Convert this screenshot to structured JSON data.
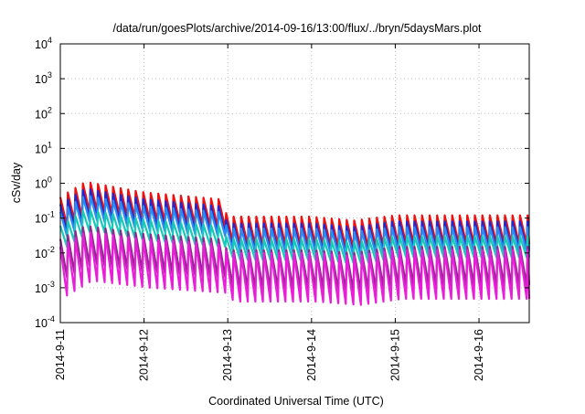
{
  "chart_data": {
    "type": "line",
    "title": "/data/run/goesPlots/archive/2014-09-16/13:00/flux/../bryn/5daysMars.plot",
    "xlabel": "Coordinated Universal Time (UTC)",
    "ylabel": "cSv/day",
    "x_range_days": [
      0,
      5.6
    ],
    "ylim": [
      0.0001,
      10000
    ],
    "yscale": "log",
    "grid": true,
    "legend": "none",
    "x_tick_labels": [
      "2014-9-11",
      "2014-9-12",
      "2014-9-13",
      "2014-9-14",
      "2014-9-15",
      "2014-9-16"
    ],
    "x_tick_values": [
      0,
      1,
      2,
      3,
      4,
      5
    ],
    "y_ticks": [
      {
        "value": 0.0001,
        "base": "10",
        "exp": "-4"
      },
      {
        "value": 0.001,
        "base": "10",
        "exp": "-3"
      },
      {
        "value": 0.01,
        "base": "10",
        "exp": "-2"
      },
      {
        "value": 0.1,
        "base": "10",
        "exp": "-1"
      },
      {
        "value": 1,
        "base": "10",
        "exp": "0"
      },
      {
        "value": 10,
        "base": "10",
        "exp": "1"
      },
      {
        "value": 100,
        "base": "10",
        "exp": "2"
      },
      {
        "value": 1000,
        "base": "10",
        "exp": "3"
      },
      {
        "value": 10000,
        "base": "10",
        "exp": "4"
      }
    ],
    "oscillation_period_days": 0.09,
    "series": [
      {
        "color": "#ee1111",
        "peaks": [
          [
            0,
            0.4
          ],
          [
            0.3,
            1.1
          ],
          [
            1.0,
            0.55
          ],
          [
            1.9,
            0.35
          ],
          [
            2.0,
            0.11
          ],
          [
            3.0,
            0.11
          ],
          [
            3.5,
            0.085
          ],
          [
            4.0,
            0.12
          ],
          [
            5.6,
            0.12
          ]
        ],
        "trough_factor": 0.15
      },
      {
        "color": "#1a2ad8",
        "peaks": [
          [
            0,
            0.25
          ],
          [
            0.3,
            0.7
          ],
          [
            1.0,
            0.35
          ],
          [
            1.9,
            0.22
          ],
          [
            2.0,
            0.07
          ],
          [
            3.0,
            0.07
          ],
          [
            3.5,
            0.055
          ],
          [
            4.0,
            0.08
          ],
          [
            5.6,
            0.08
          ]
        ],
        "trough_factor": 0.15
      },
      {
        "color": "#2a8cf0",
        "peaks": [
          [
            0,
            0.15
          ],
          [
            0.3,
            0.45
          ],
          [
            1.0,
            0.22
          ],
          [
            1.9,
            0.15
          ],
          [
            2.0,
            0.05
          ],
          [
            3.0,
            0.05
          ],
          [
            3.5,
            0.04
          ],
          [
            4.0,
            0.055
          ],
          [
            5.6,
            0.055
          ]
        ],
        "trough_factor": 0.2
      },
      {
        "color": "#18c8b8",
        "peaks": [
          [
            0,
            0.06
          ],
          [
            0.3,
            0.18
          ],
          [
            1.0,
            0.09
          ],
          [
            1.9,
            0.06
          ],
          [
            2.0,
            0.025
          ],
          [
            3.0,
            0.025
          ],
          [
            3.5,
            0.02
          ],
          [
            4.0,
            0.03
          ],
          [
            5.6,
            0.03
          ]
        ],
        "trough_factor": 0.25
      },
      {
        "color": "#8a2a8a",
        "peaks": [
          [
            0,
            0.025
          ],
          [
            0.3,
            0.06
          ],
          [
            1.0,
            0.035
          ],
          [
            1.9,
            0.025
          ],
          [
            2.0,
            0.012
          ],
          [
            3.0,
            0.012
          ],
          [
            3.5,
            0.01
          ],
          [
            4.0,
            0.015
          ],
          [
            5.6,
            0.015
          ]
        ],
        "trough_factor": 0.08
      },
      {
        "color": "#e81ed8",
        "peaks": [
          [
            0,
            0.015
          ],
          [
            0.3,
            0.04
          ],
          [
            1.0,
            0.025
          ],
          [
            1.9,
            0.018
          ],
          [
            2.0,
            0.01
          ],
          [
            3.0,
            0.01
          ],
          [
            3.5,
            0.008
          ],
          [
            4.0,
            0.012
          ],
          [
            5.6,
            0.012
          ]
        ],
        "trough_factor": 0.04
      }
    ]
  }
}
